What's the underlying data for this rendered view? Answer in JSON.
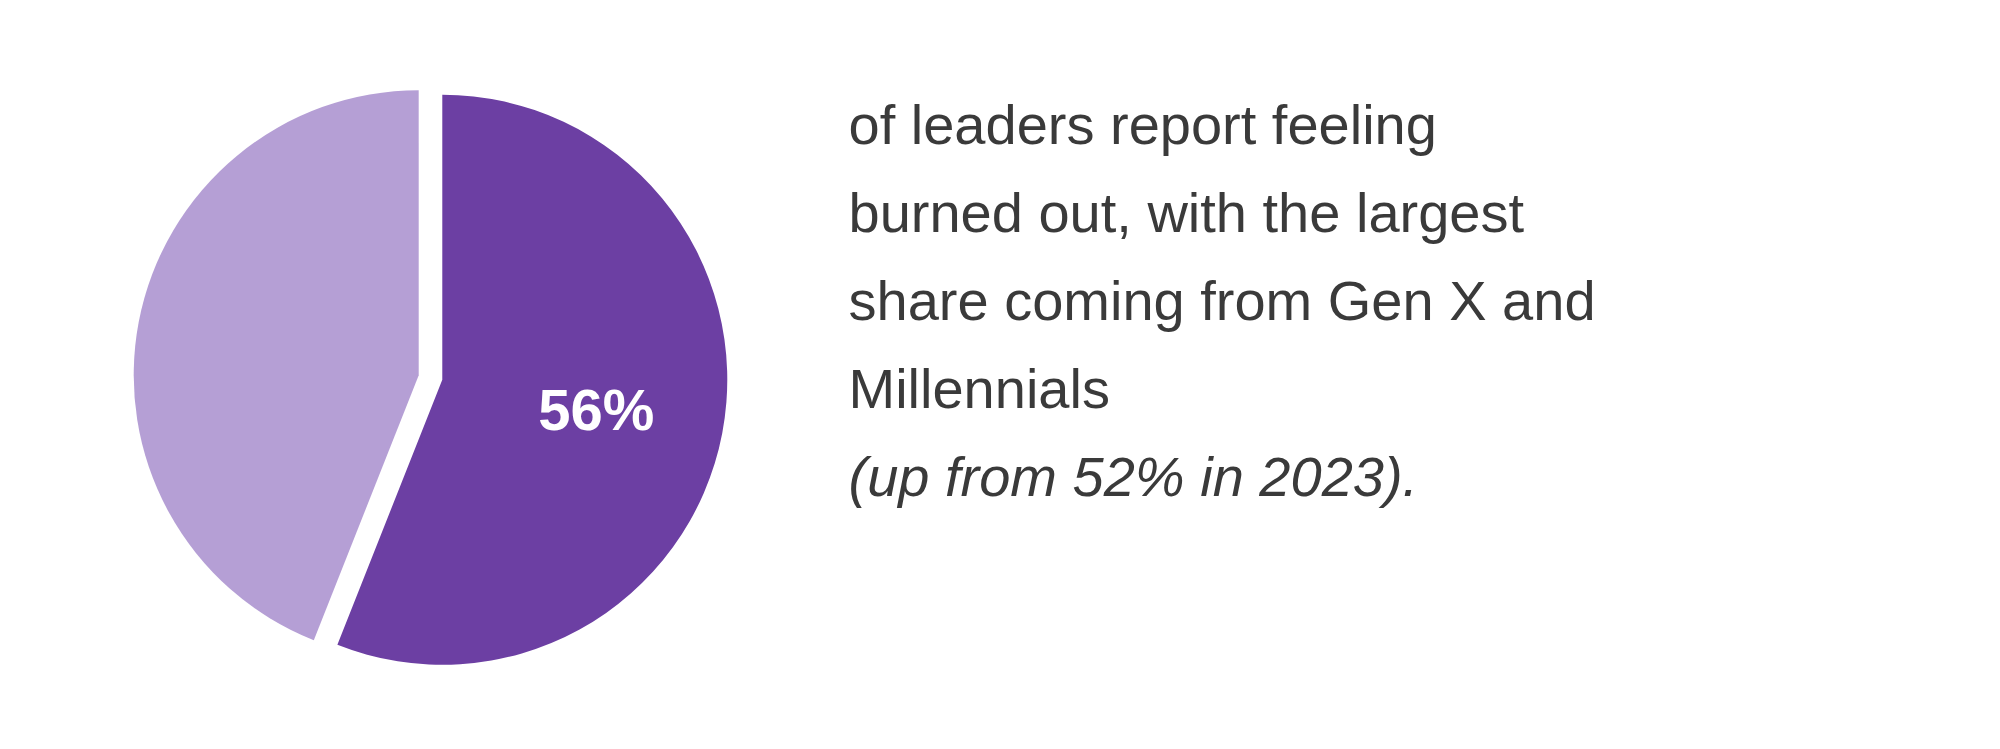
{
  "chart_data": {
    "type": "pie",
    "categories": [
      null,
      null
    ],
    "values": [
      56,
      44
    ],
    "colors": [
      "#6c3fa3",
      "#b59fd5"
    ],
    "value_labels": [
      "56%",
      null
    ],
    "annotations": [
      "of leaders report feeling burned out, with the largest share coming from Gen X and Millennials",
      "(up from 52% in 2023)."
    ]
  }
}
